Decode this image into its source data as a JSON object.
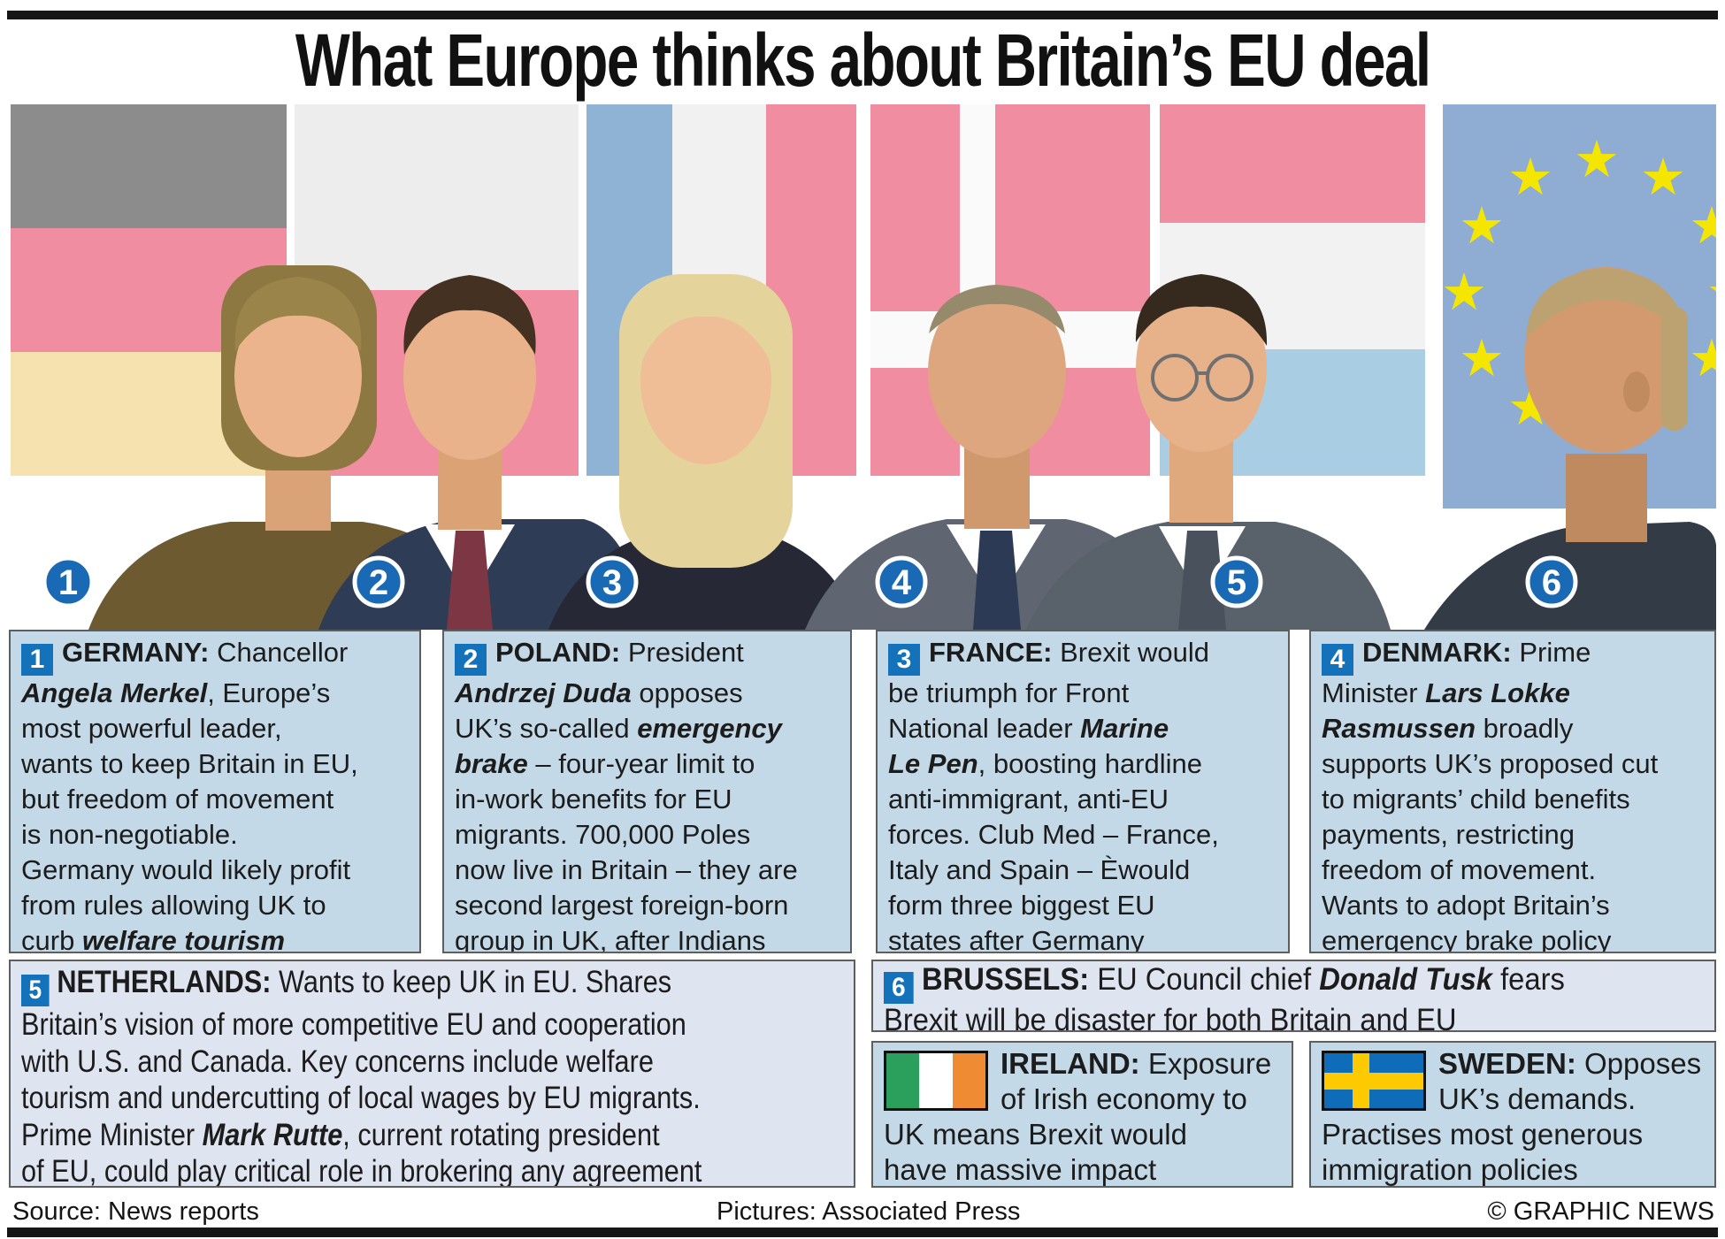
{
  "title": "What Europe thinks about Britain’s EU deal",
  "colors": {
    "box_blue": "#c4d9e7",
    "box_lavender": "#dfe4f1",
    "badge_blue": "#1372b9",
    "circle_blue": "#1a69b4",
    "flag_gray": "#8c8c8c",
    "flag_pink": "#f18da1",
    "flag_cream": "#f6e2ae",
    "flag_offwhite": "#ededed",
    "flag_blue_fr": "#8fb3d4",
    "flag_blue_nl": "#a9cee4",
    "flag_blue_eu": "#8fadd3",
    "star_yellow": "#f4e600"
  },
  "banner": {
    "circles": [
      "1",
      "2",
      "3",
      "4",
      "5",
      "6"
    ],
    "flags": [
      "germany-flag",
      "poland-flag",
      "france-flag",
      "denmark-flag",
      "netherlands-flag",
      "eu-flag"
    ],
    "photos": [
      "merkel-photo",
      "duda-photo",
      "lepen-photo",
      "rasmussen-photo",
      "rutte-photo",
      "tusk-photo"
    ]
  },
  "boxes": {
    "germany": {
      "num": "1",
      "segments": [
        [
          "b",
          "GERMANY: "
        ],
        [
          "p",
          "Chancellor\n"
        ],
        [
          "bi",
          "Angela Merkel"
        ],
        [
          "p",
          ", Europe’s\nmost powerful leader,\nwants to keep Britain in EU,\nbut freedom of movement\nis non-negotiable.\nGermany would likely profit\nfrom rules allowing UK to\ncurb "
        ],
        [
          "bi",
          "welfare tourism"
        ]
      ]
    },
    "poland": {
      "num": "2",
      "segments": [
        [
          "b",
          "POLAND: "
        ],
        [
          "p",
          "President\n"
        ],
        [
          "bi",
          "Andrzej Duda"
        ],
        [
          "p",
          " opposes\nUK’s so-called "
        ],
        [
          "bi",
          "emergency\nbrake"
        ],
        [
          "p",
          " – four-year limit to\nin-work benefits for EU\nmigrants. 700,000 Poles\nnow live in Britain – they are\nsecond largest foreign-born\ngroup in UK, after Indians"
        ]
      ]
    },
    "france": {
      "num": "3",
      "segments": [
        [
          "b",
          "FRANCE: "
        ],
        [
          "p",
          "Brexit would\nbe triumph for Front\nNational leader "
        ],
        [
          "bi",
          "Marine\nLe Pen"
        ],
        [
          "p",
          ", boosting hardline\nanti-immigrant, anti-EU\nforces. Club Med – France,\nItaly and Spain – Èwould\nform three biggest EU\nstates after Germany"
        ]
      ]
    },
    "denmark": {
      "num": "4",
      "segments": [
        [
          "b",
          "DENMARK: "
        ],
        [
          "p",
          "Prime\nMinister "
        ],
        [
          "bi",
          "Lars Lokke\nRasmussen"
        ],
        [
          "p",
          " broadly\nsupports UK’s proposed cut\nto migrants’ child benefits\npayments, restricting\nfreedom of movement.\nWants to adopt Britain’s\nemergency brake policy"
        ]
      ]
    },
    "netherlands": {
      "num": "5",
      "segments": [
        [
          "b",
          "NETHERLANDS: "
        ],
        [
          "p",
          "Wants to keep UK in EU. Shares\nBritain’s vision of more competitive EU and cooperation\nwith U.S. and Canada. Key concerns include welfare\ntourism and undercutting of local wages by EU migrants.\nPrime Minister "
        ],
        [
          "bi",
          "Mark Rutte"
        ],
        [
          "p",
          ", current rotating president\nof EU, could play critical role in brokering any agreement"
        ]
      ]
    },
    "brussels": {
      "num": "6",
      "segments": [
        [
          "b",
          "BRUSSELS: "
        ],
        [
          "p",
          "EU Council chief "
        ],
        [
          "bi",
          "Donald Tusk"
        ],
        [
          "p",
          " fears\nBrexit will be disaster for both Britain and EU"
        ]
      ]
    },
    "ireland": {
      "segments": [
        [
          "b",
          "IRELAND: "
        ],
        [
          "p",
          "Exposure\nof Irish economy to\nUK means Brexit would\nhave massive impact"
        ]
      ]
    },
    "sweden": {
      "segments": [
        [
          "b",
          "SWEDEN: "
        ],
        [
          "p",
          "Opposes\nUK’s demands.\nPractises most generous\nimmigration policies"
        ]
      ]
    }
  },
  "footer": {
    "source": "Source: News reports",
    "pictures": "Pictures: Associated Press",
    "copyright": "© GRAPHIC NEWS"
  }
}
